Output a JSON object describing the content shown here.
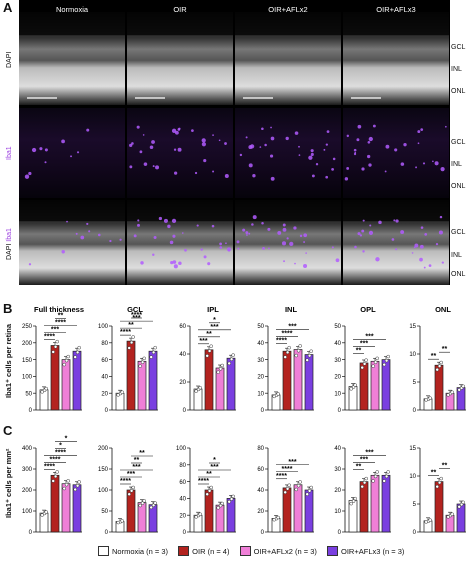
{
  "panel_A": {
    "label": "A",
    "columns": [
      "Normoxia",
      "OIR",
      "OIR+AFLx2",
      "OIR+AFLx3"
    ],
    "rows": [
      {
        "label": "DAPI"
      },
      {
        "label": "Iba1"
      },
      {
        "label_part1": "DAPI",
        "label_part2": "Iba1"
      }
    ],
    "layers": [
      "GCL",
      "INL",
      "ONL"
    ]
  },
  "panel_B": {
    "label": "B",
    "ylabel": "Iba1⁺ cells per retina"
  },
  "panel_C": {
    "label": "C",
    "ylabel": "Iba1⁺ cells per mm²"
  },
  "legend": [
    {
      "label": "Normoxia (n = 3)",
      "color": "#ffffff"
    },
    {
      "label": "OIR (n = 4)",
      "color": "#b3231f"
    },
    {
      "label": "OIR+AFLx2 (n = 3)",
      "color": "#ef7fd7"
    },
    {
      "label": "OIR+AFLx3 (n = 3)",
      "color": "#7a3fe0"
    }
  ],
  "colors": {
    "normoxia": "#ffffff",
    "oir": "#b3231f",
    "aflx2": "#ef7fd7",
    "aflx3": "#7a3fe0",
    "iba1": "#b15cff"
  },
  "chart_data": [
    {
      "type": "bar",
      "panel": "B",
      "title": "Full thickness",
      "categories": [
        "Normoxia",
        "OIR",
        "OIR+AFLx2",
        "OIR+AFLx3"
      ],
      "values": [
        60,
        192,
        150,
        175
      ],
      "ylim": [
        0,
        250
      ],
      "yticks": [
        0,
        50,
        100,
        150,
        200,
        250
      ],
      "sig": [
        {
          "a": 0,
          "b": 1,
          "t": "****"
        },
        {
          "a": 0,
          "b": 2,
          "t": "***"
        },
        {
          "a": 0,
          "b": 3,
          "t": "****"
        },
        {
          "a": 1,
          "b": 2,
          "t": "**"
        }
      ]
    },
    {
      "type": "bar",
      "panel": "B",
      "title": "GCL",
      "categories": [
        "Normoxia",
        "OIR",
        "OIR+AFLx2",
        "OIR+AFLx3"
      ],
      "values": [
        20,
        82,
        58,
        70
      ],
      "ylim": [
        0,
        100
      ],
      "yticks": [
        0,
        20,
        40,
        60,
        80,
        100
      ],
      "sig": [
        {
          "a": 0,
          "b": 1,
          "t": "****"
        },
        {
          "a": 0,
          "b": 2,
          "t": "**"
        },
        {
          "a": 0,
          "b": 3,
          "t": "***"
        },
        {
          "a": 1,
          "b": 2,
          "t": "****"
        }
      ]
    },
    {
      "type": "bar",
      "panel": "B",
      "title": "IPL",
      "categories": [
        "Normoxia",
        "OIR",
        "OIR+AFLx2",
        "OIR+AFLx3"
      ],
      "values": [
        15,
        43,
        30,
        37
      ],
      "ylim": [
        0,
        60
      ],
      "yticks": [
        0,
        20,
        40,
        60
      ],
      "sig": [
        {
          "a": 0,
          "b": 1,
          "t": "***"
        },
        {
          "a": 0,
          "b": 2,
          "t": "**"
        },
        {
          "a": 0,
          "b": 3,
          "t": "***"
        },
        {
          "a": 1,
          "b": 2,
          "t": "*"
        }
      ]
    },
    {
      "type": "bar",
      "panel": "B",
      "title": "INL",
      "categories": [
        "Normoxia",
        "OIR",
        "OIR+AFLx2",
        "OIR+AFLx3"
      ],
      "values": [
        9,
        35,
        36,
        33
      ],
      "ylim": [
        0,
        50
      ],
      "yticks": [
        0,
        10,
        20,
        30,
        40,
        50
      ],
      "sig": [
        {
          "a": 0,
          "b": 1,
          "t": "****"
        },
        {
          "a": 0,
          "b": 2,
          "t": "****"
        },
        {
          "a": 0,
          "b": 3,
          "t": "***"
        }
      ]
    },
    {
      "type": "bar",
      "panel": "B",
      "title": "OPL",
      "categories": [
        "Normoxia",
        "OIR",
        "OIR+AFLx2",
        "OIR+AFLx3"
      ],
      "values": [
        14,
        28,
        29,
        30
      ],
      "ylim": [
        0,
        50
      ],
      "yticks": [
        0,
        10,
        20,
        30,
        40,
        50
      ],
      "sig": [
        {
          "a": 0,
          "b": 1,
          "t": "**"
        },
        {
          "a": 0,
          "b": 2,
          "t": "***"
        },
        {
          "a": 0,
          "b": 3,
          "t": "***"
        }
      ]
    },
    {
      "type": "bar",
      "panel": "B",
      "title": "ONL",
      "categories": [
        "Normoxia",
        "OIR",
        "OIR+AFLx2",
        "OIR+AFLx3"
      ],
      "values": [
        2,
        8,
        3,
        4
      ],
      "ylim": [
        0,
        15
      ],
      "yticks": [
        0,
        5,
        10,
        15
      ],
      "sig": [
        {
          "a": 0,
          "b": 1,
          "t": "**"
        },
        {
          "a": 1,
          "b": 2,
          "t": "**"
        }
      ]
    },
    {
      "type": "bar",
      "panel": "C",
      "title": "",
      "categories": [
        "Normoxia",
        "OIR",
        "OIR+AFLx2",
        "OIR+AFLx3"
      ],
      "values": [
        90,
        270,
        230,
        225
      ],
      "ylim": [
        0,
        400
      ],
      "yticks": [
        0,
        100,
        200,
        300,
        400
      ],
      "sig": [
        {
          "a": 0,
          "b": 1,
          "t": "****"
        },
        {
          "a": 0,
          "b": 2,
          "t": "****"
        },
        {
          "a": 0,
          "b": 3,
          "t": "****"
        },
        {
          "a": 1,
          "b": 2,
          "t": "*"
        },
        {
          "a": 1,
          "b": 3,
          "t": "*"
        }
      ]
    },
    {
      "type": "bar",
      "panel": "C",
      "title": "",
      "categories": [
        "Normoxia",
        "OIR",
        "OIR+AFLx2",
        "OIR+AFLx3"
      ],
      "values": [
        25,
        100,
        70,
        65
      ],
      "ylim": [
        0,
        200
      ],
      "yticks": [
        0,
        50,
        100,
        150,
        200
      ],
      "sig": [
        {
          "a": 0,
          "b": 1,
          "t": "****"
        },
        {
          "a": 0,
          "b": 2,
          "t": "***"
        },
        {
          "a": 0,
          "b": 3,
          "t": "***"
        },
        {
          "a": 1,
          "b": 2,
          "t": "**"
        },
        {
          "a": 1,
          "b": 3,
          "t": "**"
        }
      ]
    },
    {
      "type": "bar",
      "panel": "C",
      "title": "",
      "categories": [
        "Normoxia",
        "OIR",
        "OIR+AFLx2",
        "OIR+AFLx3"
      ],
      "values": [
        20,
        50,
        32,
        40
      ],
      "ylim": [
        0,
        100
      ],
      "yticks": [
        0,
        20,
        40,
        60,
        80,
        100
      ],
      "sig": [
        {
          "a": 0,
          "b": 1,
          "t": "****"
        },
        {
          "a": 0,
          "b": 2,
          "t": "**"
        },
        {
          "a": 0,
          "b": 3,
          "t": "***"
        },
        {
          "a": 1,
          "b": 2,
          "t": "*"
        }
      ]
    },
    {
      "type": "bar",
      "panel": "C",
      "title": "",
      "categories": [
        "Normoxia",
        "OIR",
        "OIR+AFLx2",
        "OIR+AFLx3"
      ],
      "values": [
        13,
        42,
        45,
        40
      ],
      "ylim": [
        0,
        80
      ],
      "yticks": [
        0,
        20,
        40,
        60,
        80
      ],
      "sig": [
        {
          "a": 0,
          "b": 1,
          "t": "****"
        },
        {
          "a": 0,
          "b": 2,
          "t": "****"
        },
        {
          "a": 0,
          "b": 3,
          "t": "***"
        }
      ]
    },
    {
      "type": "bar",
      "panel": "C",
      "title": "",
      "categories": [
        "Normoxia",
        "OIR",
        "OIR+AFLx2",
        "OIR+AFLx3"
      ],
      "values": [
        15,
        24,
        27,
        27
      ],
      "ylim": [
        0,
        40
      ],
      "yticks": [
        0,
        10,
        20,
        30,
        40
      ],
      "sig": [
        {
          "a": 0,
          "b": 1,
          "t": "**"
        },
        {
          "a": 0,
          "b": 2,
          "t": "***"
        },
        {
          "a": 0,
          "b": 3,
          "t": "***"
        }
      ]
    },
    {
      "type": "bar",
      "panel": "C",
      "title": "",
      "categories": [
        "Normoxia",
        "OIR",
        "OIR+AFLx2",
        "OIR+AFLx3"
      ],
      "values": [
        2,
        9,
        3,
        5
      ],
      "ylim": [
        0,
        15
      ],
      "yticks": [
        0,
        5,
        10,
        15
      ],
      "sig": [
        {
          "a": 0,
          "b": 1,
          "t": "**"
        },
        {
          "a": 1,
          "b": 2,
          "t": "**"
        }
      ]
    }
  ]
}
